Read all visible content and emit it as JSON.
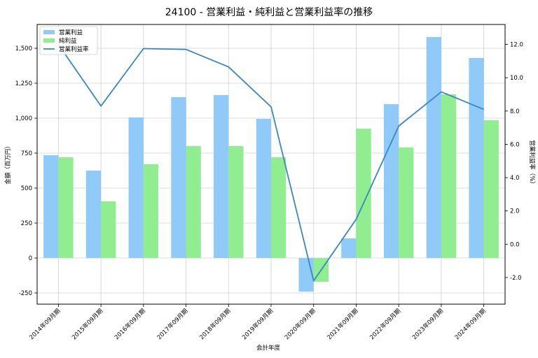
{
  "chart_data": {
    "type": "bar+line",
    "title": "24100 - 営業利益・純利益と営業利益率の推移",
    "xlabel": "会計年度",
    "ylabel_left": "金額（百万円）",
    "ylabel_right": "営業利益率（%）",
    "categories": [
      "2014年09月期",
      "2015年09月期",
      "2016年09月期",
      "2017年09月期",
      "2018年09月期",
      "2019年09月期",
      "2020年09月期",
      "2021年09月期",
      "2022年09月期",
      "2023年09月期",
      "2024年09月期"
    ],
    "series": [
      {
        "name": "営業利益",
        "type": "bar",
        "axis": "left",
        "color": "#90caf9",
        "values": [
          735,
          625,
          1005,
          1150,
          1165,
          995,
          -240,
          140,
          1100,
          1580,
          1430
        ]
      },
      {
        "name": "純利益",
        "type": "bar",
        "axis": "left",
        "color": "#90ee90",
        "values": [
          720,
          405,
          670,
          800,
          800,
          720,
          -170,
          925,
          790,
          1170,
          985
        ]
      },
      {
        "name": "営業利益率",
        "type": "line",
        "axis": "right",
        "color": "#3a86c8",
        "values": [
          12.0,
          8.3,
          11.75,
          11.7,
          10.65,
          8.25,
          -2.2,
          1.5,
          7.1,
          9.15,
          8.1
        ]
      }
    ],
    "ylim_left": [
      -330,
      1670
    ],
    "ylim_right": [
      -3.6,
      13.2
    ],
    "yticks_left": [
      -250,
      0,
      250,
      500,
      750,
      1000,
      1250,
      1500
    ],
    "yticks_right": [
      -2.0,
      0.0,
      2.0,
      4.0,
      6.0,
      8.0,
      10.0,
      12.0
    ],
    "ytick_labels_left": [
      "-250",
      "0",
      "250",
      "500",
      "750",
      "1,000",
      "1,250",
      "1,500"
    ],
    "ytick_labels_right": [
      "-2.0",
      "0.0",
      "2.0",
      "4.0",
      "6.0",
      "8.0",
      "10.0",
      "12.0"
    ],
    "grid": true,
    "legend_position": "top-left"
  }
}
